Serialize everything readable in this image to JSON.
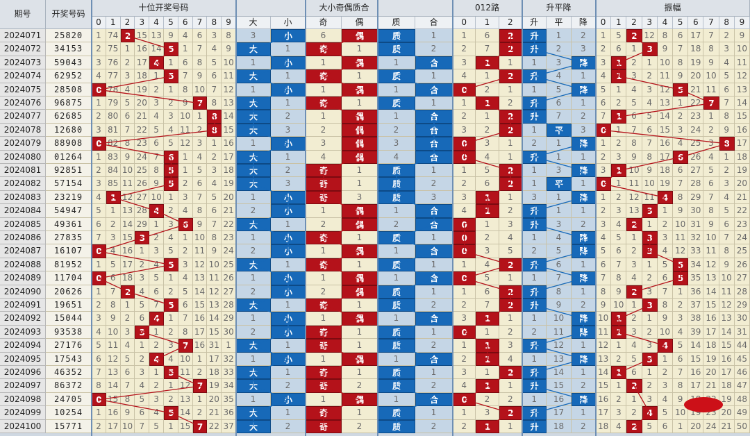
{
  "headers": {
    "period": "期号",
    "numbers": "开奖号码",
    "tens": "十位开奖号码",
    "bigsmall_oddeven_primecomp": "大小奇偶质合",
    "road012": "012路",
    "trend": "升平降",
    "amplitude": "振幅"
  },
  "subheaders": {
    "digits": [
      "0",
      "1",
      "2",
      "3",
      "4",
      "5",
      "6",
      "7",
      "8",
      "9"
    ],
    "bs": [
      "大",
      "小"
    ],
    "oe": [
      "奇",
      "偶"
    ],
    "pc": [
      "质",
      "合"
    ],
    "road": [
      "0",
      "1",
      "2"
    ],
    "tr": [
      "升",
      "平",
      "降"
    ]
  },
  "rows": [
    {
      "p": "2024071",
      "n": "25820",
      "tens": [
        1,
        74,
        "2",
        15,
        13,
        9,
        4,
        6,
        3,
        8
      ],
      "bs": [
        3,
        "小"
      ],
      "oe": [
        6,
        "偶"
      ],
      "pc": [
        "质",
        1
      ],
      "road": [
        1,
        6,
        "2"
      ],
      "tr": [
        "升",
        1,
        2
      ],
      "amp": [
        1,
        5,
        "2",
        12,
        8,
        6,
        17,
        7,
        2,
        9
      ]
    },
    {
      "p": "2024072",
      "n": "34153",
      "tens": [
        2,
        75,
        1,
        16,
        14,
        "5",
        1,
        7,
        4,
        9
      ],
      "bs": [
        "大",
        1
      ],
      "oe": [
        "奇",
        1
      ],
      "pc": [
        "质",
        2
      ],
      "road": [
        2,
        7,
        "2"
      ],
      "tr": [
        "升",
        2,
        3
      ],
      "amp": [
        2,
        6,
        1,
        "3",
        9,
        7,
        18,
        8,
        3,
        10
      ]
    },
    {
      "p": "2024073",
      "n": "59043",
      "tens": [
        3,
        76,
        2,
        17,
        "4",
        1,
        6,
        8,
        5,
        10
      ],
      "bs": [
        1,
        "小"
      ],
      "oe": [
        1,
        "偶"
      ],
      "pc": [
        1,
        "合"
      ],
      "road": [
        3,
        "1",
        1
      ],
      "tr": [
        1,
        3,
        "降"
      ],
      "amp": [
        3,
        "1",
        2,
        1,
        10,
        8,
        19,
        9,
        4,
        11
      ]
    },
    {
      "p": "2024074",
      "n": "62952",
      "tens": [
        4,
        77,
        3,
        18,
        1,
        "5",
        7,
        9,
        6,
        11
      ],
      "bs": [
        "大",
        1
      ],
      "oe": [
        "奇",
        1
      ],
      "pc": [
        "质",
        1
      ],
      "road": [
        4,
        1,
        "2"
      ],
      "tr": [
        "升",
        4,
        1
      ],
      "amp": [
        4,
        "1",
        3,
        2,
        11,
        9,
        20,
        10,
        5,
        12
      ]
    },
    {
      "p": "2024075",
      "n": "28508",
      "tens": [
        "0",
        78,
        4,
        19,
        2,
        1,
        8,
        10,
        7,
        12
      ],
      "bs": [
        1,
        "小"
      ],
      "oe": [
        1,
        "偶"
      ],
      "pc": [
        1,
        "合"
      ],
      "road": [
        "0",
        2,
        1
      ],
      "tr": [
        1,
        5,
        "降"
      ],
      "amp": [
        5,
        1,
        4,
        3,
        12,
        "5",
        21,
        11,
        6,
        13
      ]
    },
    {
      "p": "2024076",
      "n": "96875",
      "tens": [
        1,
        79,
        5,
        20,
        3,
        2,
        9,
        "7",
        8,
        13
      ],
      "bs": [
        "大",
        1
      ],
      "oe": [
        "奇",
        1
      ],
      "pc": [
        "质",
        1
      ],
      "road": [
        1,
        "1",
        2
      ],
      "tr": [
        "升",
        6,
        1
      ],
      "amp": [
        6,
        2,
        5,
        4,
        13,
        1,
        22,
        "7",
        7,
        14
      ]
    },
    {
      "p": "2024077",
      "n": "62685",
      "tens": [
        2,
        80,
        6,
        21,
        4,
        3,
        10,
        1,
        "8",
        14
      ],
      "bs": [
        "大",
        2
      ],
      "oe": [
        1,
        "偶"
      ],
      "pc": [
        1,
        "合"
      ],
      "road": [
        2,
        1,
        "2"
      ],
      "tr": [
        "升",
        7,
        2
      ],
      "amp": [
        7,
        "1",
        6,
        5,
        14,
        2,
        23,
        1,
        8,
        15
      ]
    },
    {
      "p": "2024078",
      "n": "12680",
      "tens": [
        3,
        81,
        7,
        22,
        5,
        4,
        11,
        2,
        "8",
        15
      ],
      "bs": [
        "大",
        3
      ],
      "oe": [
        2,
        "偶"
      ],
      "pc": [
        2,
        "合"
      ],
      "road": [
        3,
        2,
        "2"
      ],
      "tr": [
        1,
        "平",
        3
      ],
      "amp": [
        "0",
        1,
        7,
        6,
        15,
        3,
        24,
        2,
        9,
        16
      ]
    },
    {
      "p": "2024079",
      "n": "88908",
      "tens": [
        "0",
        82,
        8,
        23,
        6,
        5,
        12,
        3,
        1,
        16
      ],
      "bs": [
        1,
        "小"
      ],
      "oe": [
        3,
        "偶"
      ],
      "pc": [
        3,
        "合"
      ],
      "road": [
        "0",
        3,
        1
      ],
      "tr": [
        2,
        1,
        "降"
      ],
      "amp": [
        1,
        2,
        8,
        7,
        16,
        4,
        25,
        3,
        "8",
        17
      ]
    },
    {
      "p": "2024080",
      "n": "01264",
      "tens": [
        1,
        83,
        9,
        24,
        7,
        "6",
        1,
        4,
        2,
        17
      ],
      "bs": [
        "大",
        1
      ],
      "oe": [
        4,
        "偶"
      ],
      "pc": [
        4,
        "合"
      ],
      "road": [
        "0",
        4,
        1
      ],
      "tr": [
        "升",
        1,
        1
      ],
      "amp": [
        2,
        3,
        9,
        8,
        17,
        "6",
        26,
        4,
        1,
        18
      ]
    },
    {
      "p": "2024081",
      "n": "92851",
      "tens": [
        2,
        84,
        10,
        25,
        8,
        "5",
        1,
        5,
        3,
        18
      ],
      "bs": [
        "大",
        2
      ],
      "oe": [
        "奇",
        1
      ],
      "pc": [
        "质",
        1
      ],
      "road": [
        1,
        5,
        "2"
      ],
      "tr": [
        1,
        3,
        "降"
      ],
      "amp": [
        3,
        "1",
        10,
        9,
        18,
        6,
        27,
        5,
        2,
        19
      ]
    },
    {
      "p": "2024082",
      "n": "57154",
      "tens": [
        3,
        85,
        11,
        26,
        9,
        "5",
        2,
        6,
        4,
        19
      ],
      "bs": [
        "大",
        3
      ],
      "oe": [
        "奇",
        1
      ],
      "pc": [
        "质",
        2
      ],
      "road": [
        2,
        6,
        "2"
      ],
      "tr": [
        1,
        "平",
        1
      ],
      "amp": [
        "0",
        1,
        11,
        10,
        19,
        7,
        28,
        6,
        3,
        20
      ]
    },
    {
      "p": "2024083",
      "n": "23219",
      "tens": [
        4,
        "1",
        12,
        27,
        10,
        1,
        3,
        7,
        5,
        20
      ],
      "bs": [
        1,
        "小"
      ],
      "oe": [
        "奇",
        3
      ],
      "pc": [
        "质",
        3
      ],
      "road": [
        3,
        "1",
        1
      ],
      "tr": [
        3,
        1,
        "降"
      ],
      "amp": [
        1,
        2,
        12,
        11,
        "4",
        8,
        29,
        7,
        4,
        21
      ]
    },
    {
      "p": "2024084",
      "n": "54947",
      "tens": [
        5,
        1,
        13,
        28,
        "4",
        2,
        4,
        8,
        6,
        21
      ],
      "bs": [
        2,
        "小"
      ],
      "oe": [
        1,
        "偶"
      ],
      "pc": [
        1,
        "合"
      ],
      "road": [
        4,
        "1",
        2
      ],
      "tr": [
        "升",
        1,
        1
      ],
      "amp": [
        2,
        3,
        13,
        "3",
        1,
        9,
        30,
        8,
        5,
        22
      ]
    },
    {
      "p": "2024085",
      "n": "49361",
      "tens": [
        6,
        2,
        14,
        29,
        1,
        3,
        "6",
        9,
        7,
        22
      ],
      "bs": [
        "大",
        1
      ],
      "oe": [
        2,
        "偶"
      ],
      "pc": [
        2,
        "合"
      ],
      "road": [
        "0",
        1,
        3
      ],
      "tr": [
        "升",
        3,
        2
      ],
      "amp": [
        3,
        4,
        "2",
        1,
        2,
        10,
        31,
        9,
        6,
        23
      ]
    },
    {
      "p": "2024086",
      "n": "27835",
      "tens": [
        7,
        3,
        15,
        "3",
        2,
        4,
        1,
        10,
        8,
        23
      ],
      "bs": [
        1,
        "小"
      ],
      "oe": [
        "奇",
        1
      ],
      "pc": [
        "质",
        1
      ],
      "road": [
        "0",
        2,
        4
      ],
      "tr": [
        1,
        4,
        "降"
      ],
      "amp": [
        4,
        5,
        1,
        "3",
        3,
        11,
        32,
        10,
        7,
        24
      ]
    },
    {
      "p": "2024087",
      "n": "16107",
      "tens": [
        "0",
        4,
        16,
        1,
        3,
        5,
        2,
        11,
        9,
        24
      ],
      "bs": [
        2,
        "小"
      ],
      "oe": [
        1,
        "偶"
      ],
      "pc": [
        1,
        "合"
      ],
      "road": [
        "0",
        3,
        5
      ],
      "tr": [
        2,
        5,
        "降"
      ],
      "amp": [
        5,
        6,
        2,
        "3",
        4,
        12,
        33,
        11,
        8,
        25
      ]
    },
    {
      "p": "2024088",
      "n": "81952",
      "tens": [
        1,
        5,
        17,
        2,
        4,
        "5",
        3,
        12,
        10,
        25
      ],
      "bs": [
        "大",
        1
      ],
      "oe": [
        "奇",
        1
      ],
      "pc": [
        "质",
        1
      ],
      "road": [
        1,
        4,
        "2"
      ],
      "tr": [
        "升",
        6,
        1
      ],
      "amp": [
        6,
        7,
        3,
        1,
        5,
        "5",
        34,
        12,
        9,
        26
      ]
    },
    {
      "p": "2024089",
      "n": "11704",
      "tens": [
        "0",
        6,
        18,
        3,
        5,
        1,
        4,
        13,
        11,
        26
      ],
      "bs": [
        1,
        "小"
      ],
      "oe": [
        1,
        "偶"
      ],
      "pc": [
        1,
        "合"
      ],
      "road": [
        "0",
        5,
        1
      ],
      "tr": [
        1,
        7,
        "降"
      ],
      "amp": [
        7,
        8,
        4,
        2,
        6,
        "5",
        35,
        13,
        10,
        27
      ]
    },
    {
      "p": "2024090",
      "n": "20626",
      "tens": [
        1,
        7,
        "2",
        4,
        6,
        2,
        5,
        14,
        12,
        27
      ],
      "bs": [
        2,
        "小"
      ],
      "oe": [
        2,
        "偶"
      ],
      "pc": [
        "质",
        1
      ],
      "road": [
        1,
        6,
        "2"
      ],
      "tr": [
        "升",
        8,
        1
      ],
      "amp": [
        8,
        9,
        "2",
        3,
        7,
        1,
        36,
        14,
        11,
        28
      ]
    },
    {
      "p": "2024091",
      "n": "19651",
      "tens": [
        2,
        8,
        1,
        5,
        7,
        "5",
        6,
        15,
        13,
        28
      ],
      "bs": [
        "大",
        1
      ],
      "oe": [
        "奇",
        1
      ],
      "pc": [
        "质",
        2
      ],
      "road": [
        2,
        7,
        "2"
      ],
      "tr": [
        "升",
        9,
        2
      ],
      "amp": [
        9,
        10,
        1,
        "3",
        8,
        2,
        37,
        15,
        12,
        29
      ]
    },
    {
      "p": "2024092",
      "n": "15044",
      "tens": [
        3,
        9,
        2,
        6,
        "4",
        1,
        7,
        16,
        14,
        29
      ],
      "bs": [
        1,
        "小"
      ],
      "oe": [
        1,
        "偶"
      ],
      "pc": [
        1,
        "合"
      ],
      "road": [
        3,
        "1",
        1
      ],
      "tr": [
        1,
        10,
        "降"
      ],
      "amp": [
        10,
        "1",
        2,
        1,
        9,
        3,
        38,
        16,
        13,
        30
      ]
    },
    {
      "p": "2024093",
      "n": "93538",
      "tens": [
        4,
        10,
        3,
        "3",
        1,
        2,
        8,
        17,
        15,
        30
      ],
      "bs": [
        2,
        "小"
      ],
      "oe": [
        "奇",
        1
      ],
      "pc": [
        "质",
        1
      ],
      "road": [
        "0",
        1,
        2
      ],
      "tr": [
        2,
        11,
        "降"
      ],
      "amp": [
        11,
        "1",
        3,
        2,
        10,
        4,
        39,
        17,
        14,
        31
      ]
    },
    {
      "p": "2024094",
      "n": "27176",
      "tens": [
        5,
        11,
        4,
        1,
        2,
        3,
        "7",
        16,
        31,
        1
      ],
      "bs": [
        "大",
        1
      ],
      "oe": [
        "奇",
        1
      ],
      "pc": [
        "质",
        2
      ],
      "road": [
        1,
        "1",
        3
      ],
      "tr": [
        "升",
        12,
        1
      ],
      "amp": [
        12,
        1,
        4,
        3,
        "4",
        5,
        14,
        18,
        15,
        44
      ]
    },
    {
      "p": "2024095",
      "n": "17543",
      "tens": [
        6,
        12,
        5,
        2,
        "4",
        4,
        10,
        1,
        17,
        32
      ],
      "bs": [
        1,
        "小"
      ],
      "oe": [
        1,
        "偶"
      ],
      "pc": [
        1,
        "合"
      ],
      "road": [
        2,
        "1",
        4
      ],
      "tr": [
        1,
        13,
        "降"
      ],
      "amp": [
        13,
        2,
        5,
        "3",
        1,
        6,
        15,
        19,
        16,
        45
      ]
    },
    {
      "p": "2024096",
      "n": "46352",
      "tens": [
        7,
        13,
        6,
        3,
        1,
        "5",
        11,
        2,
        18,
        33
      ],
      "bs": [
        "大",
        1
      ],
      "oe": [
        "奇",
        1
      ],
      "pc": [
        "质",
        1
      ],
      "road": [
        3,
        1,
        "2"
      ],
      "tr": [
        "升",
        14,
        1
      ],
      "amp": [
        14,
        "1",
        6,
        1,
        2,
        7,
        16,
        20,
        17,
        46
      ]
    },
    {
      "p": "2024097",
      "n": "86372",
      "tens": [
        8,
        14,
        7,
        4,
        2,
        1,
        12,
        "7",
        19,
        34
      ],
      "bs": [
        "大",
        2
      ],
      "oe": [
        "奇",
        2
      ],
      "pc": [
        "质",
        2
      ],
      "road": [
        4,
        "1",
        1
      ],
      "tr": [
        "升",
        15,
        2
      ],
      "amp": [
        15,
        1,
        "2",
        2,
        3,
        8,
        17,
        21,
        18,
        47
      ]
    },
    {
      "p": "2024098",
      "n": "24705",
      "tens": [
        "0",
        15,
        8,
        5,
        3,
        2,
        13,
        1,
        20,
        35
      ],
      "bs": [
        1,
        "小"
      ],
      "oe": [
        1,
        "偶"
      ],
      "pc": [
        1,
        "合"
      ],
      "road": [
        "0",
        2,
        2
      ],
      "tr": [
        1,
        16,
        "降"
      ],
      "amp": [
        16,
        2,
        1,
        3,
        4,
        9,
        18,
        22,
        19,
        48
      ]
    },
    {
      "p": "2024099",
      "n": "10254",
      "tens": [
        1,
        16,
        9,
        6,
        4,
        "5",
        14,
        2,
        21,
        36
      ],
      "bs": [
        "大",
        1
      ],
      "oe": [
        "奇",
        1
      ],
      "pc": [
        "质",
        1
      ],
      "road": [
        1,
        3,
        "2"
      ],
      "tr": [
        "升",
        17,
        1
      ],
      "amp": [
        17,
        3,
        2,
        "4",
        5,
        10,
        19,
        23,
        20,
        49
      ]
    },
    {
      "p": "2024100",
      "n": "15771",
      "tens": [
        2,
        17,
        10,
        7,
        5,
        1,
        15,
        "7",
        22,
        37
      ],
      "bs": [
        "大",
        2
      ],
      "oe": [
        "奇",
        2
      ],
      "pc": [
        "质",
        2
      ],
      "road": [
        2,
        "1",
        1
      ],
      "tr": [
        "升",
        18,
        2
      ],
      "amp": [
        18,
        4,
        "2",
        5,
        6,
        1,
        20,
        24,
        21,
        50
      ]
    }
  ]
}
